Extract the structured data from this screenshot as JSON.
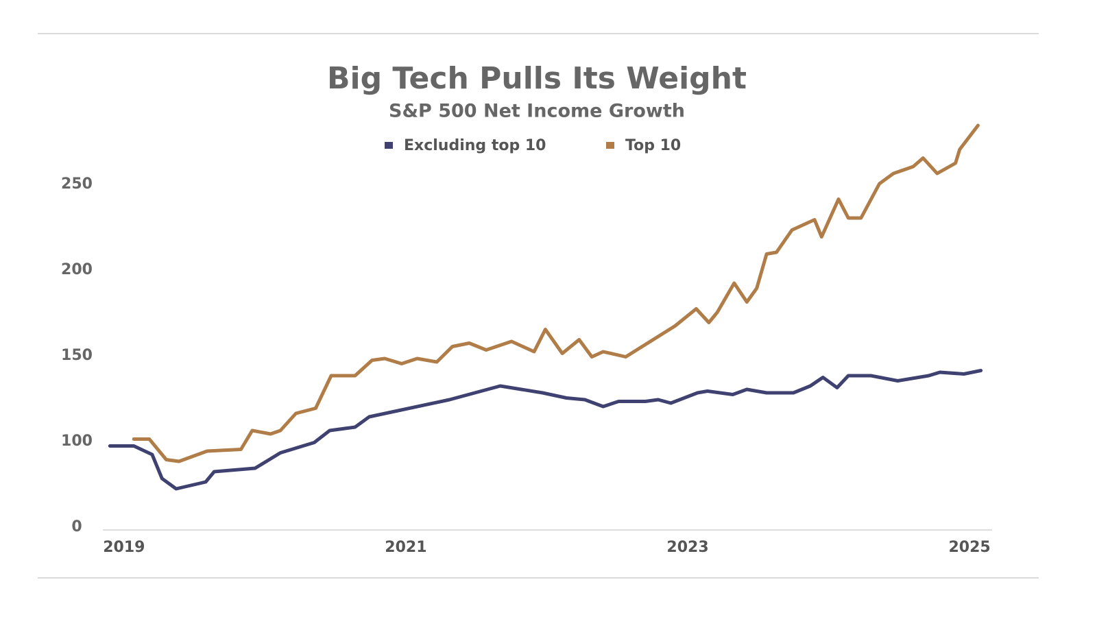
{
  "chart_data": {
    "type": "line",
    "title": "Big Tech Pulls Its Weight",
    "subtitle": "S&P 500 Net Income Growth",
    "xlim": [
      2018.85,
      2025.16
    ],
    "xticks": [
      2019,
      2021,
      2023,
      2025
    ],
    "ylim": [
      0,
      290
    ],
    "ybreak": [
      0,
      50
    ],
    "yticks": [
      0,
      100,
      150,
      200,
      250
    ],
    "grid": false,
    "legend": "top",
    "series": [
      {
        "name": "Excluding top 10",
        "color": "#3f4270",
        "x": [
          2018.9,
          2019.07,
          2019.2,
          2019.27,
          2019.37,
          2019.58,
          2019.64,
          2019.93,
          2020.11,
          2020.35,
          2020.46,
          2020.64,
          2020.74,
          2021.31,
          2021.67,
          2021.97,
          2022.14,
          2022.27,
          2022.4,
          2022.51,
          2022.7,
          2022.79,
          2022.88,
          2023.07,
          2023.14,
          2023.32,
          2023.42,
          2023.56,
          2023.75,
          2023.87,
          2023.96,
          2024.06,
          2024.14,
          2024.3,
          2024.49,
          2024.71,
          2024.79,
          2024.96,
          2025.08
        ],
        "values": [
          99,
          99,
          94,
          80,
          74,
          78,
          84,
          86,
          95,
          101,
          108,
          110,
          116,
          126,
          134,
          130,
          127,
          126,
          122,
          125,
          125,
          126,
          124,
          130,
          131,
          129,
          132,
          130,
          130,
          134,
          139,
          133,
          140,
          140,
          137,
          140,
          142,
          141,
          143
        ]
      },
      {
        "name": "Top 10",
        "color": "#b07d48",
        "x": [
          2019.07,
          2019.18,
          2019.3,
          2019.39,
          2019.59,
          2019.83,
          2019.91,
          2020.04,
          2020.11,
          2020.22,
          2020.36,
          2020.47,
          2020.64,
          2020.76,
          2020.85,
          2020.97,
          2021.08,
          2021.22,
          2021.33,
          2021.45,
          2021.57,
          2021.75,
          2021.91,
          2021.99,
          2022.11,
          2022.23,
          2022.32,
          2022.4,
          2022.56,
          2022.91,
          2023.06,
          2023.15,
          2023.21,
          2023.33,
          2023.42,
          2023.49,
          2023.56,
          2023.63,
          2023.74,
          2023.9,
          2023.95,
          2024.07,
          2024.14,
          2024.23,
          2024.36,
          2024.46,
          2024.6,
          2024.67,
          2024.77,
          2024.9,
          2024.93,
          2025.06
        ],
        "values": [
          103,
          103,
          91,
          90,
          96,
          97,
          108,
          106,
          108,
          118,
          121,
          140,
          140,
          149,
          150,
          147,
          150,
          148,
          157,
          159,
          155,
          160,
          154,
          167,
          153,
          161,
          151,
          154,
          151,
          169,
          179,
          171,
          177,
          194,
          183,
          191,
          211,
          212,
          225,
          231,
          221,
          243,
          232,
          232,
          252,
          258,
          262,
          267,
          258,
          264,
          272,
          286
        ]
      }
    ]
  }
}
